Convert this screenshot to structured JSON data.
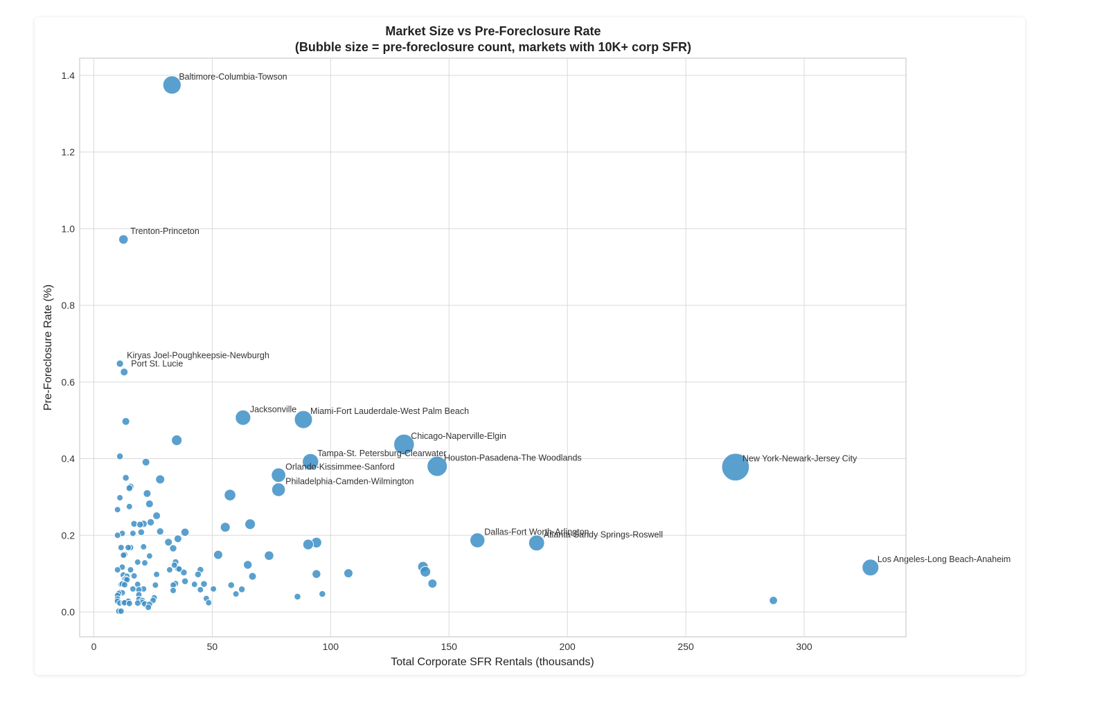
{
  "colors": {
    "bubble": "#3d8fc6",
    "bubble_edge": "#ffffff",
    "grid": "#d9d9d9",
    "frame": "#cccccc",
    "text": "#222222"
  },
  "chart_data": {
    "type": "scatter",
    "title_line1": "Market Size vs Pre-Foreclosure Rate",
    "title_line2": "(Bubble size = pre-foreclosure count, markets with 10K+ corp SFR)",
    "xlabel": "Total Corporate SFR Rentals (thousands)",
    "ylabel": "Pre-Foreclosure Rate (%)",
    "xlim": [
      -6,
      343
    ],
    "ylim": [
      -0.065,
      1.445
    ],
    "grid": true,
    "xticks": [
      0,
      50,
      100,
      150,
      200,
      250,
      300
    ],
    "xtick_labels": [
      "0",
      "50",
      "100",
      "150",
      "200",
      "250",
      "300"
    ],
    "yticks": [
      0.0,
      0.2,
      0.4,
      0.6,
      0.8,
      1.0,
      1.2,
      1.4
    ],
    "ytick_labels": [
      "0.0",
      "0.2",
      "0.4",
      "0.6",
      "0.8",
      "1.0",
      "1.2",
      "1.4"
    ],
    "size_unit": "pre-foreclosure count",
    "labeled_points": [
      {
        "name": "Baltimore-Columbia-Towson",
        "x": 33.0,
        "y": 1.375,
        "count": 450
      },
      {
        "name": "Trenton-Princeton",
        "x": 12.5,
        "y": 0.972,
        "count": 120
      },
      {
        "name": "Kiryas Joel-Poughkeepsie-Newburgh",
        "x": 11.0,
        "y": 0.648,
        "count": 70
      },
      {
        "name": "Port St. Lucie",
        "x": 12.8,
        "y": 0.626,
        "count": 80
      },
      {
        "name": "Jacksonville",
        "x": 63.0,
        "y": 0.507,
        "count": 320
      },
      {
        "name": "Miami-Fort Lauderdale-West Palm Beach",
        "x": 88.5,
        "y": 0.502,
        "count": 440
      },
      {
        "name": "Chicago-Naperville-Elgin",
        "x": 131.0,
        "y": 0.437,
        "count": 570
      },
      {
        "name": "Tampa-St. Petersburg-Clearwater",
        "x": 91.5,
        "y": 0.392,
        "count": 360
      },
      {
        "name": "Houston-Pasadena-The Woodlands",
        "x": 145.0,
        "y": 0.38,
        "count": 550
      },
      {
        "name": "New York-Newark-Jersey City",
        "x": 271.0,
        "y": 0.378,
        "count": 1030
      },
      {
        "name": "Orlando-Kissimmee-Sanford",
        "x": 78.0,
        "y": 0.357,
        "count": 280
      },
      {
        "name": "Philadelphia-Camden-Wilmington",
        "x": 78.0,
        "y": 0.319,
        "count": 250
      },
      {
        "name": "Dallas-Fort Worth-Arlington",
        "x": 162.0,
        "y": 0.187,
        "count": 300
      },
      {
        "name": "Atlanta-Sandy Springs-Roswell",
        "x": 187.0,
        "y": 0.18,
        "count": 340
      },
      {
        "name": "Los Angeles-Long Beach-Anaheim",
        "x": 328.0,
        "y": 0.116,
        "count": 380
      }
    ],
    "other_points": [
      [
        13.5,
        0.497,
        80
      ],
      [
        35.0,
        0.448,
        150
      ],
      [
        11.0,
        0.406,
        60
      ],
      [
        22.0,
        0.391,
        80
      ],
      [
        13.5,
        0.35,
        60
      ],
      [
        28.0,
        0.346,
        110
      ],
      [
        15.5,
        0.327,
        60
      ],
      [
        15.0,
        0.323,
        60
      ],
      [
        22.5,
        0.309,
        80
      ],
      [
        11.0,
        0.298,
        50
      ],
      [
        57.5,
        0.305,
        180
      ],
      [
        23.5,
        0.282,
        80
      ],
      [
        15.0,
        0.275,
        50
      ],
      [
        10.0,
        0.267,
        40
      ],
      [
        26.5,
        0.251,
        80
      ],
      [
        24.0,
        0.234,
        70
      ],
      [
        21.0,
        0.23,
        70
      ],
      [
        17.0,
        0.23,
        60
      ],
      [
        19.5,
        0.228,
        60
      ],
      [
        66.0,
        0.229,
        150
      ],
      [
        55.5,
        0.221,
        130
      ],
      [
        38.5,
        0.208,
        90
      ],
      [
        28.0,
        0.21,
        70
      ],
      [
        20.0,
        0.208,
        60
      ],
      [
        16.5,
        0.205,
        50
      ],
      [
        12.0,
        0.205,
        40
      ],
      [
        10.0,
        0.2,
        40
      ],
      [
        35.5,
        0.191,
        80
      ],
      [
        31.5,
        0.182,
        80
      ],
      [
        94.0,
        0.181,
        150
      ],
      [
        90.5,
        0.176,
        150
      ],
      [
        15.5,
        0.168,
        50
      ],
      [
        11.5,
        0.168,
        40
      ],
      [
        21.0,
        0.17,
        50
      ],
      [
        14.5,
        0.168,
        40
      ],
      [
        33.5,
        0.166,
        70
      ],
      [
        74.0,
        0.147,
        120
      ],
      [
        52.5,
        0.149,
        110
      ],
      [
        13.0,
        0.15,
        40
      ],
      [
        12.5,
        0.148,
        40
      ],
      [
        23.5,
        0.146,
        50
      ],
      [
        18.5,
        0.13,
        50
      ],
      [
        34.5,
        0.13,
        60
      ],
      [
        21.5,
        0.128,
        50
      ],
      [
        65.0,
        0.123,
        100
      ],
      [
        139.0,
        0.118,
        150
      ],
      [
        140.0,
        0.105,
        150
      ],
      [
        34.0,
        0.122,
        50
      ],
      [
        35.5,
        0.113,
        60
      ],
      [
        36.0,
        0.112,
        50
      ],
      [
        32.0,
        0.11,
        50
      ],
      [
        12.0,
        0.117,
        40
      ],
      [
        10.0,
        0.11,
        30
      ],
      [
        15.5,
        0.11,
        40
      ],
      [
        45.0,
        0.11,
        60
      ],
      [
        38.0,
        0.103,
        60
      ],
      [
        107.5,
        0.101,
        110
      ],
      [
        94.0,
        0.099,
        100
      ],
      [
        44.0,
        0.098,
        60
      ],
      [
        26.5,
        0.098,
        50
      ],
      [
        12.5,
        0.096,
        60
      ],
      [
        14.0,
        0.093,
        50
      ],
      [
        17.0,
        0.094,
        40
      ],
      [
        67.0,
        0.093,
        80
      ],
      [
        13.0,
        0.086,
        40
      ],
      [
        13.5,
        0.086,
        40
      ],
      [
        14.0,
        0.084,
        40
      ],
      [
        38.5,
        0.08,
        60
      ],
      [
        34.5,
        0.074,
        50
      ],
      [
        42.5,
        0.072,
        50
      ],
      [
        46.5,
        0.073,
        60
      ],
      [
        143.0,
        0.074,
        110
      ],
      [
        11.5,
        0.072,
        40
      ],
      [
        12.0,
        0.073,
        40
      ],
      [
        13.0,
        0.071,
        40
      ],
      [
        18.5,
        0.072,
        40
      ],
      [
        26.0,
        0.07,
        40
      ],
      [
        33.5,
        0.07,
        40
      ],
      [
        58.0,
        0.07,
        60
      ],
      [
        50.5,
        0.06,
        50
      ],
      [
        62.5,
        0.059,
        60
      ],
      [
        21.0,
        0.06,
        40
      ],
      [
        16.5,
        0.06,
        40
      ],
      [
        19.0,
        0.058,
        40
      ],
      [
        45.0,
        0.058,
        50
      ],
      [
        33.5,
        0.056,
        40
      ],
      [
        11.0,
        0.051,
        40
      ],
      [
        12.0,
        0.05,
        40
      ],
      [
        10.5,
        0.048,
        30
      ],
      [
        19.0,
        0.045,
        40
      ],
      [
        60.0,
        0.047,
        50
      ],
      [
        96.5,
        0.047,
        60
      ],
      [
        10.0,
        0.043,
        30
      ],
      [
        86.0,
        0.04,
        60
      ],
      [
        47.5,
        0.035,
        40
      ],
      [
        25.5,
        0.037,
        40
      ],
      [
        10.0,
        0.034,
        30
      ],
      [
        19.0,
        0.033,
        40
      ],
      [
        20.5,
        0.03,
        40
      ],
      [
        25.0,
        0.03,
        40
      ],
      [
        287.0,
        0.03,
        90
      ],
      [
        10.0,
        0.028,
        30
      ],
      [
        14.5,
        0.028,
        40
      ],
      [
        20.5,
        0.025,
        40
      ],
      [
        48.5,
        0.024,
        40
      ],
      [
        11.0,
        0.023,
        30
      ],
      [
        12.5,
        0.024,
        30
      ],
      [
        13.0,
        0.024,
        30
      ],
      [
        18.5,
        0.023,
        30
      ],
      [
        15.0,
        0.022,
        30
      ],
      [
        21.5,
        0.021,
        30
      ],
      [
        23.5,
        0.02,
        30
      ],
      [
        23.0,
        0.012,
        30
      ],
      [
        10.5,
        0.002,
        30
      ],
      [
        11.5,
        0.002,
        30
      ]
    ]
  }
}
